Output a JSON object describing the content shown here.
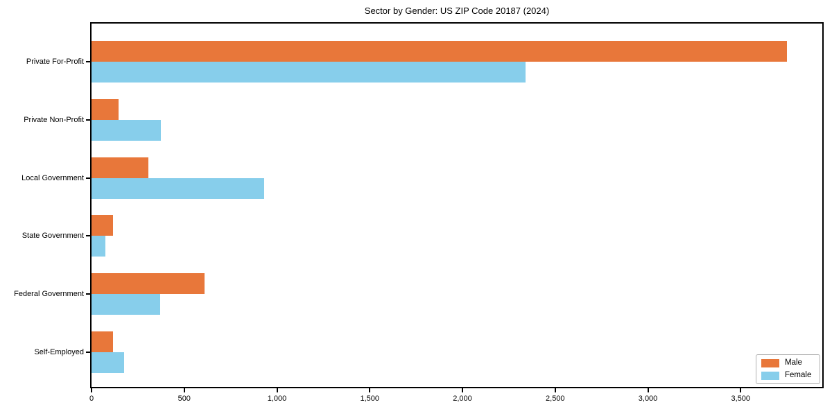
{
  "chart_data": {
    "type": "bar",
    "orientation": "horizontal",
    "title": "Sector by Gender: US ZIP Code 20187 (2024)",
    "categories": [
      "Private For-Profit",
      "Private Non-Profit",
      "Local Government",
      "State Government",
      "Federal Government",
      "Self-Employed"
    ],
    "series": [
      {
        "name": "Male",
        "color": "#e8773a",
        "values": [
          3750,
          145,
          305,
          115,
          610,
          115
        ]
      },
      {
        "name": "Female",
        "color": "#87ceeb",
        "values": [
          2340,
          375,
          930,
          75,
          370,
          175
        ]
      }
    ],
    "xlabel": "",
    "ylabel": "",
    "xlim": [
      0,
      3940
    ],
    "xticks": {
      "values": [
        0,
        500,
        1000,
        1500,
        2000,
        2500,
        3000,
        3500
      ],
      "labels": [
        "0",
        "500",
        "1,000",
        "1,500",
        "2,000",
        "2,500",
        "3,000",
        "3,500"
      ]
    },
    "legend": {
      "position": "lower right",
      "entries": [
        "Male",
        "Female"
      ]
    },
    "grid": false,
    "plot_background": "#ffffff",
    "border_color": "#000000"
  }
}
